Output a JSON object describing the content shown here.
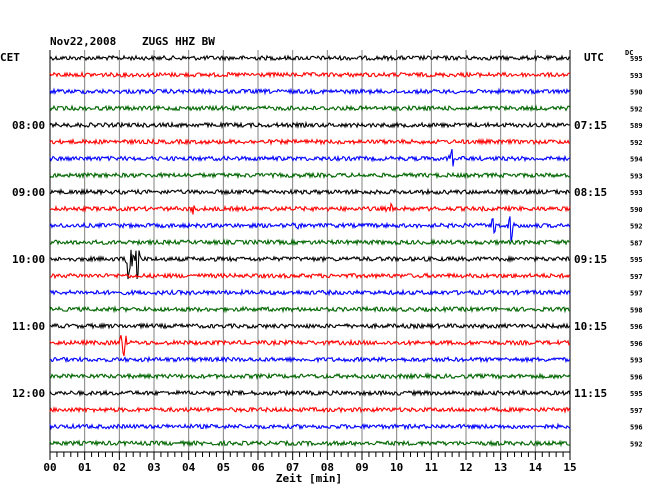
{
  "header": {
    "date": "Nov22,2008",
    "station": "ZUGS HHZ BW",
    "left_zone": "CET",
    "right_zone": "UTC",
    "dc_label": "DC"
  },
  "chart_data": {
    "type": "line",
    "title": "Nov22,2008 ZUGS HHZ BW",
    "xlabel": "Zeit [min]",
    "xlim": [
      0,
      15
    ],
    "x_ticks": [
      "00",
      "01",
      "02",
      "03",
      "04",
      "05",
      "06",
      "07",
      "08",
      "09",
      "10",
      "11",
      "12",
      "13",
      "14",
      "15"
    ],
    "trace_colors": [
      "#000000",
      "#ff0000",
      "#0000ff",
      "#006600"
    ],
    "left_hour_labels": [
      {
        "trace": 4,
        "label": "08:00"
      },
      {
        "trace": 8,
        "label": "09:00"
      },
      {
        "trace": 12,
        "label": "10:00"
      },
      {
        "trace": 16,
        "label": "11:00"
      },
      {
        "trace": 20,
        "label": "12:00"
      }
    ],
    "right_hour_labels": [
      {
        "trace": 4,
        "label": "07:15"
      },
      {
        "trace": 8,
        "label": "08:15"
      },
      {
        "trace": 12,
        "label": "09:15"
      },
      {
        "trace": 16,
        "label": "10:15"
      },
      {
        "trace": 20,
        "label": "11:15"
      }
    ],
    "dc_offsets": [
      "595",
      "593",
      "590",
      "592",
      "589",
      "592",
      "594",
      "593",
      "593",
      "590",
      "592",
      "587",
      "595",
      "597",
      "597",
      "598",
      "596",
      "596",
      "593",
      "596",
      "595",
      "597",
      "596",
      "592"
    ],
    "events": [
      {
        "trace": 6,
        "minute": 11.6,
        "amplitude": 0.9
      },
      {
        "trace": 9,
        "minute": 4.1,
        "amplitude": 0.5
      },
      {
        "trace": 9,
        "minute": 9.8,
        "amplitude": 0.4
      },
      {
        "trace": 10,
        "minute": 7.1,
        "amplitude": 0.5
      },
      {
        "trace": 10,
        "minute": 12.8,
        "amplitude": 0.9
      },
      {
        "trace": 10,
        "minute": 13.3,
        "amplitude": 1.0
      },
      {
        "trace": 12,
        "minute": 2.3,
        "amplitude": 2.0
      },
      {
        "trace": 12,
        "minute": 2.5,
        "amplitude": 1.6
      },
      {
        "trace": 17,
        "minute": 2.1,
        "amplitude": 1.6
      }
    ]
  }
}
